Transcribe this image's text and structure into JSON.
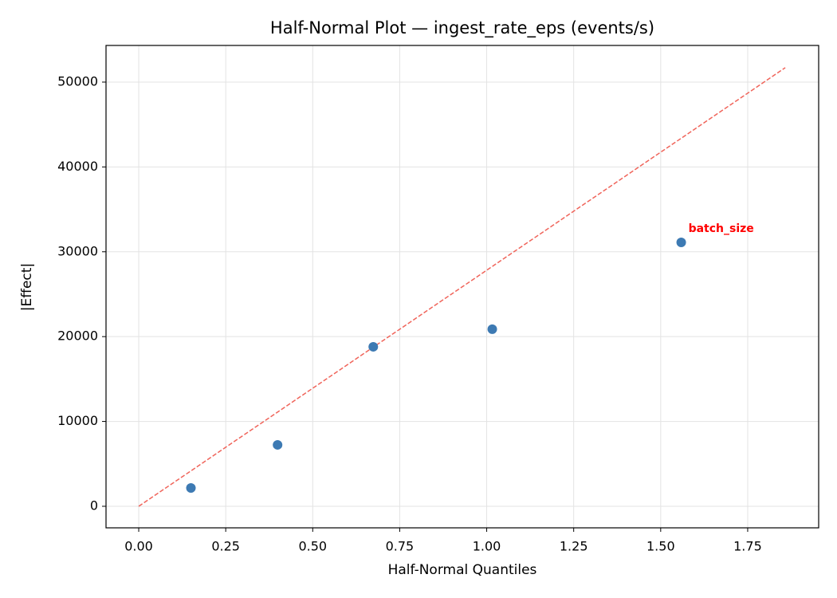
{
  "chart_data": {
    "type": "scatter",
    "title": "Half-Normal Plot — ingest_rate_eps (events/s)",
    "x_label": "Half-Normal Quantiles",
    "y_label": "|Effect|",
    "x": [
      0.15,
      0.399,
      0.674,
      1.016,
      1.559
    ],
    "values": [
      2160,
      7240,
      18800,
      20870,
      31110
    ],
    "color": "#3d7ab3",
    "reference_line": {
      "x": [
        0,
        1.858
      ],
      "values": [
        0,
        51700
      ],
      "color": "#f0645a",
      "style": "dashed"
    },
    "annotation": {
      "text": "batch_size",
      "color": "#ff0000"
    },
    "xlim": [
      -0.094,
      1.954
    ],
    "ylim": [
      -2540,
      54320
    ],
    "xticks": [
      {
        "value": 0,
        "label": "0.00"
      },
      {
        "value": 0.25,
        "label": "0.25"
      },
      {
        "value": 0.5,
        "label": "0.50"
      },
      {
        "value": 0.75,
        "label": "0.75"
      },
      {
        "value": 1,
        "label": "1.00"
      },
      {
        "value": 1.25,
        "label": "1.25"
      },
      {
        "value": 1.5,
        "label": "1.50"
      },
      {
        "value": 1.75,
        "label": "1.75"
      }
    ],
    "yticks": [
      0,
      10000,
      20000,
      30000,
      40000,
      50000
    ],
    "grid": true
  }
}
